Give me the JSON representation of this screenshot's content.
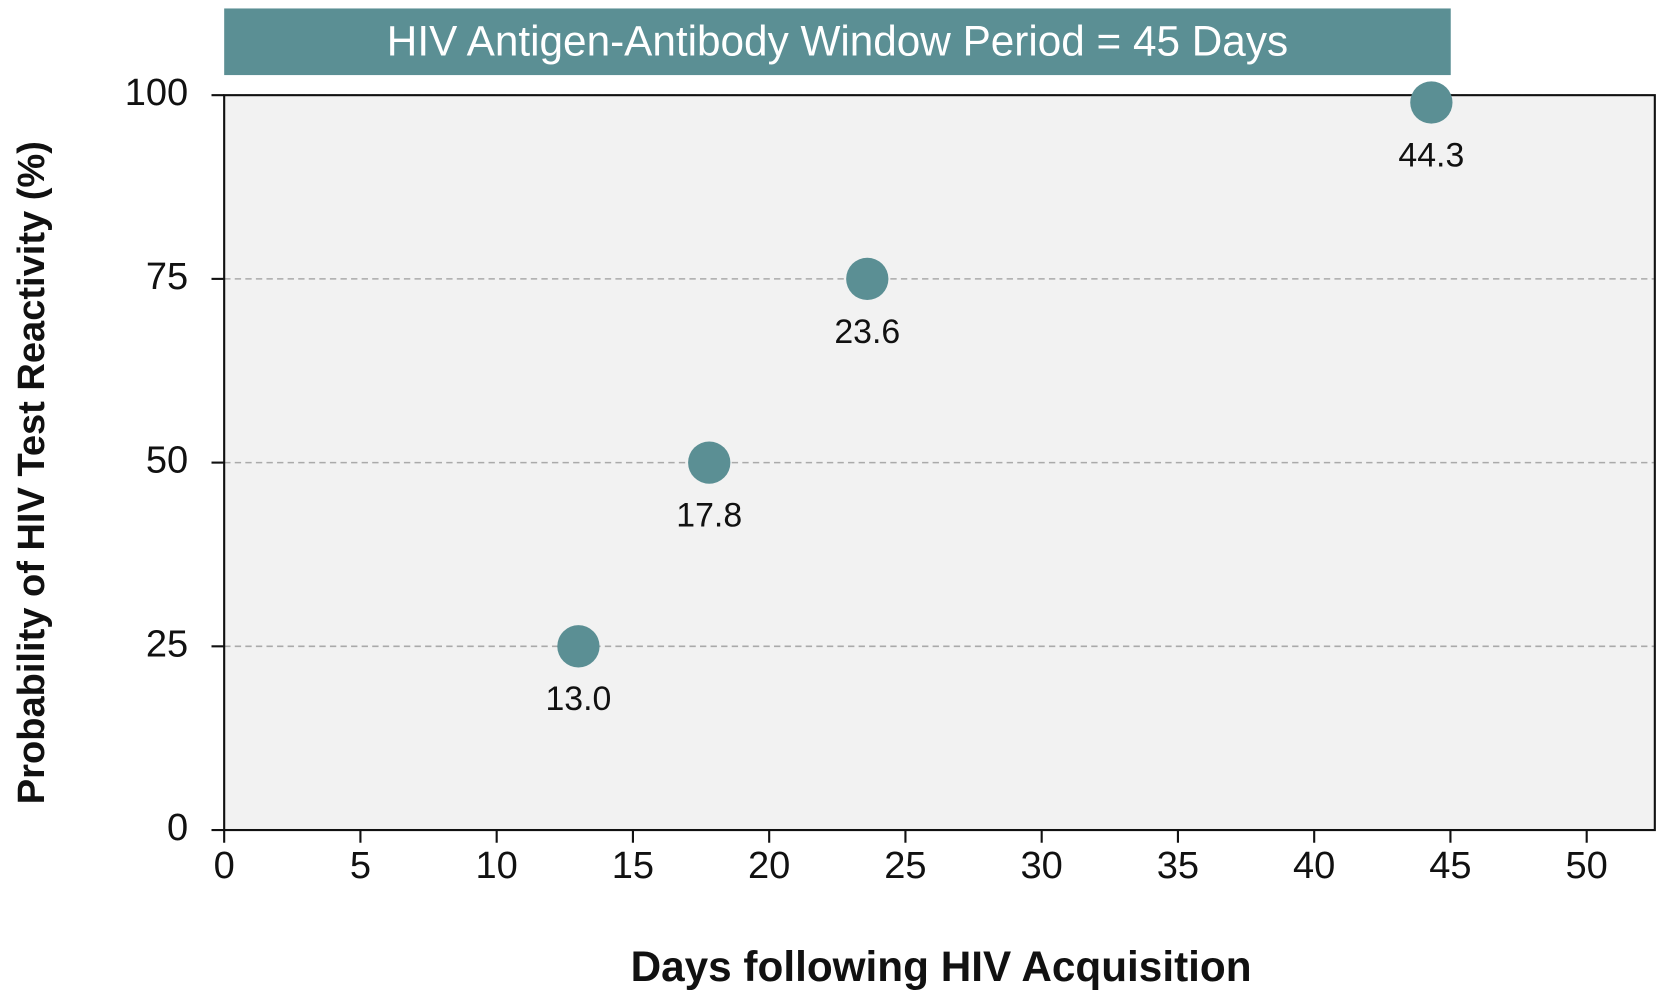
{
  "chart_data": {
    "type": "scatter",
    "title": "HIV Antigen-Antibody Window Period = 45 Days",
    "x_label": "Days following HIV Acquisition",
    "y_label": "Probability of HIV Test Reactivity (%)",
    "x": [
      13.0,
      17.8,
      23.6,
      44.3
    ],
    "values": [
      25,
      50,
      75,
      99
    ],
    "x_labels": [
      "13.0",
      "17.8",
      "23.6",
      "44.3"
    ],
    "color": "#5b8f94",
    "xlim": [
      0,
      52.5
    ],
    "ylim": [
      0,
      100
    ],
    "xticks": [
      0,
      5,
      10,
      15,
      20,
      25,
      30,
      35,
      40,
      45,
      50
    ],
    "yticks": [
      0,
      25,
      50,
      75,
      100
    ],
    "grid": true
  }
}
